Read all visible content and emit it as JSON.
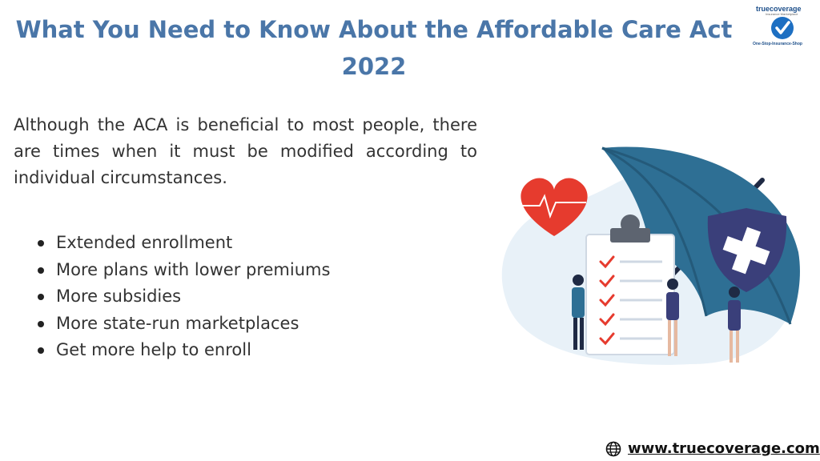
{
  "header": {
    "title": "What You Need to Know About the Affordable Care Act 2022"
  },
  "logo": {
    "brand": "truecoverage",
    "subtitle": "Insurance Marketplace",
    "tagline": "One-Stop-Insurance-Shop"
  },
  "intro": {
    "text": "Although the ACA is beneficial to most people, there are times when it must be modified according to individual circumstances."
  },
  "bullets": [
    "Extended enrollment",
    "More plans with lower premiums",
    "More subsidies",
    "More state-run marketplaces",
    "Get more help to enroll"
  ],
  "footer": {
    "url": "www.truecoverage.com",
    "icon": "globe-icon"
  },
  "colors": {
    "title": "#4a76a8",
    "umbrella": "#2e6f94",
    "heart": "#e63b2e",
    "shield": "#3a3f7a"
  }
}
